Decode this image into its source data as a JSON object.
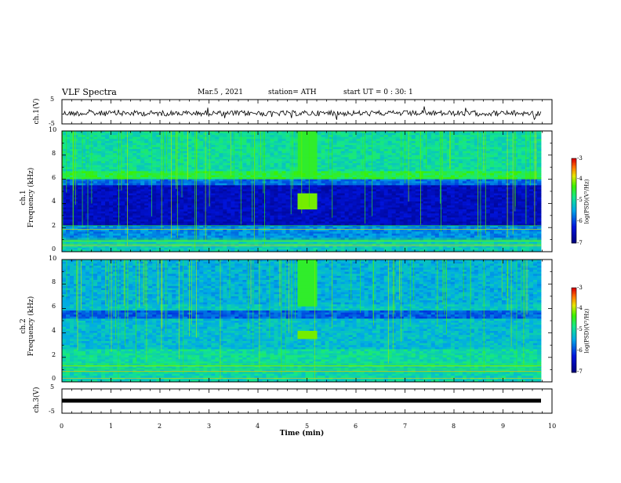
{
  "header": {
    "title": "VLF Spectra",
    "date": "Mar.5 , 2021",
    "station": "station= ATH",
    "start": "start UT = 0 : 30: 1"
  },
  "chart_data": [
    {
      "type": "line",
      "panel": "ch1-waveform",
      "ylabel": "ch.1(V)",
      "ylim": [
        -5,
        5
      ],
      "yticks": [
        "5",
        "-5"
      ],
      "xlim": [
        0,
        10
      ]
    },
    {
      "type": "heatmap",
      "panel": "ch1-spectrogram",
      "ylabel": "ch.1 Frequency (kHz)",
      "ylabel_top": "ch.1",
      "ylabel_bottom": "Frequency (kHz)",
      "ylim": [
        0,
        10
      ],
      "yticks": [
        "0",
        "2",
        "4",
        "6",
        "8",
        "10"
      ],
      "xlim": [
        0,
        10
      ],
      "colorbar": {
        "label": "log(PSD)(V²/Hz)",
        "range": [
          -7,
          -3
        ],
        "ticks": [
          "-3",
          "-4",
          "-5",
          "-6",
          "-7"
        ]
      }
    },
    {
      "type": "heatmap",
      "panel": "ch2-spectrogram",
      "ylabel": "ch.2 Frequency (kHz)",
      "ylabel_top": "ch.2",
      "ylabel_bottom": "Frequency (kHz)",
      "ylim": [
        0,
        10
      ],
      "yticks": [
        "0",
        "2",
        "4",
        "6",
        "8",
        "10"
      ],
      "xlim": [
        0,
        10
      ],
      "colorbar": {
        "label": "log(PSD)(V²/Hz)",
        "range": [
          -7,
          -3
        ],
        "ticks": [
          "-3",
          "-4",
          "-5",
          "-6",
          "-7"
        ]
      }
    },
    {
      "type": "line",
      "panel": "ch3-waveform",
      "ylabel": "ch.3(V)",
      "ylim": [
        -5,
        5
      ],
      "yticks": [
        "5",
        "-5"
      ],
      "xlim": [
        0,
        10
      ],
      "values_note_level": 0
    }
  ],
  "xaxis": {
    "label": "Time (min)",
    "ticks": [
      "0",
      "1",
      "2",
      "3",
      "4",
      "5",
      "6",
      "7",
      "8",
      "9",
      "10"
    ]
  },
  "colors": {
    "accent": "#000000"
  }
}
